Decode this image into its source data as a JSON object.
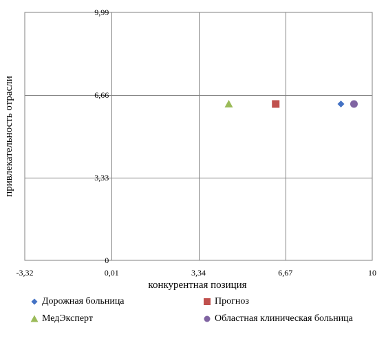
{
  "chart_data": {
    "type": "scatter",
    "xlabel": "конкурентная позиция",
    "ylabel": "привлекательность отрасли",
    "xlim": [
      -3.32,
      10
    ],
    "ylim": [
      0,
      9.99
    ],
    "x_ticks": [
      {
        "value": -3.32,
        "label": "-3,32"
      },
      {
        "value": 0.01,
        "label": "0,01"
      },
      {
        "value": 3.34,
        "label": "3,34"
      },
      {
        "value": 6.67,
        "label": "6,67"
      },
      {
        "value": 10,
        "label": "10"
      }
    ],
    "y_ticks": [
      {
        "value": 0,
        "label": "0"
      },
      {
        "value": 3.33,
        "label": "3,33"
      },
      {
        "value": 6.66,
        "label": "6,66"
      },
      {
        "value": 9.99,
        "label": "9,99"
      }
    ],
    "grid": true,
    "legend_position": "bottom",
    "series": [
      {
        "name": "Дорожная больница",
        "marker": "diamond",
        "color": "#4472C4",
        "x": 8.8,
        "y": 6.3
      },
      {
        "name": "Прогноз",
        "marker": "square",
        "color": "#C0504D",
        "x": 6.3,
        "y": 6.3
      },
      {
        "name": "МедЭксперт",
        "marker": "triangle",
        "color": "#9BBB59",
        "x": 4.5,
        "y": 6.3
      },
      {
        "name": "Областная клиническая больница",
        "marker": "circle",
        "color": "#8064A2",
        "x": 9.3,
        "y": 6.3
      }
    ]
  }
}
